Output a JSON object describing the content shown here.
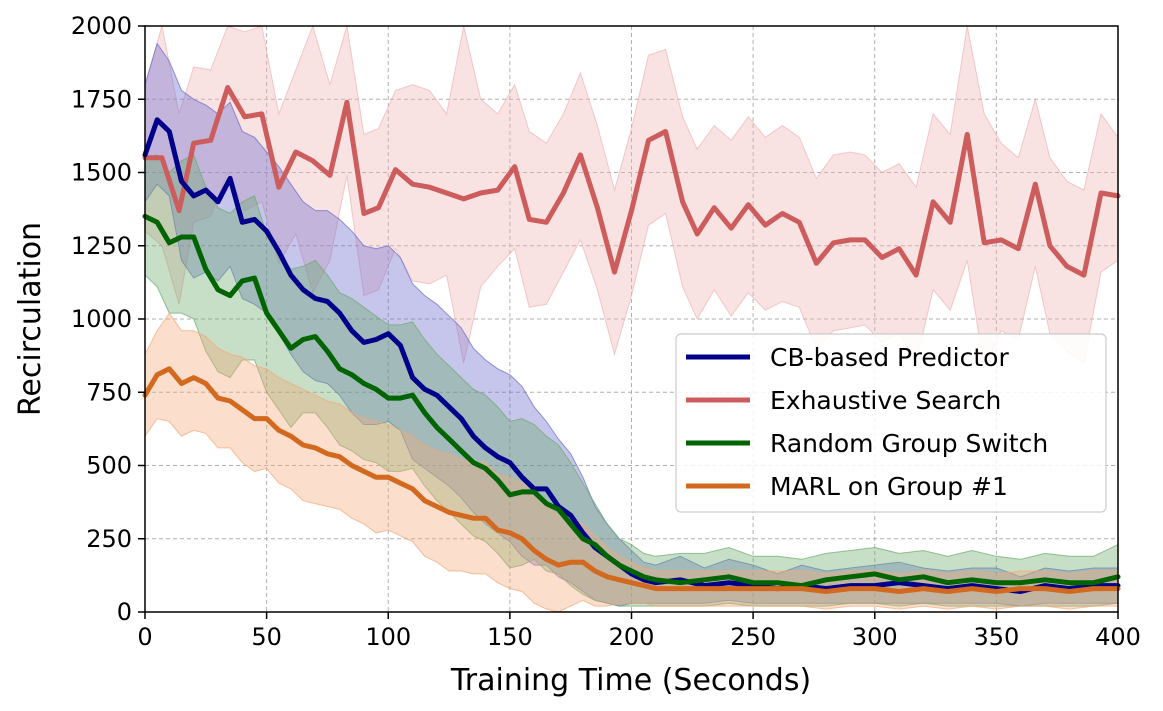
{
  "chart_data": {
    "type": "line",
    "xlabel": "Training Time (Seconds)",
    "ylabel": "Recirculation",
    "xlim": [
      0,
      400
    ],
    "ylim": [
      0,
      2000
    ],
    "xticks": [
      0,
      50,
      100,
      150,
      200,
      250,
      300,
      350,
      400
    ],
    "yticks": [
      0,
      250,
      500,
      750,
      1000,
      1250,
      1500,
      1750,
      2000
    ],
    "grid": true,
    "legend_position": "center-right",
    "series": [
      {
        "name": "CB-based Predictor",
        "color": "#00008b",
        "band_color": "#6a6acd",
        "x": [
          0,
          5,
          10,
          15,
          20,
          25,
          30,
          35,
          40,
          45,
          50,
          55,
          60,
          65,
          70,
          75,
          80,
          85,
          90,
          95,
          100,
          105,
          110,
          115,
          120,
          125,
          130,
          135,
          140,
          145,
          150,
          155,
          160,
          165,
          170,
          175,
          180,
          185,
          190,
          195,
          200,
          205,
          210,
          220,
          230,
          240,
          250,
          260,
          270,
          280,
          290,
          300,
          310,
          320,
          330,
          340,
          350,
          360,
          370,
          380,
          390,
          400
        ],
        "values": [
          1560,
          1680,
          1640,
          1470,
          1420,
          1440,
          1400,
          1480,
          1330,
          1340,
          1300,
          1230,
          1150,
          1100,
          1070,
          1060,
          1020,
          960,
          920,
          930,
          950,
          910,
          800,
          760,
          740,
          700,
          660,
          600,
          560,
          530,
          510,
          460,
          420,
          420,
          360,
          330,
          270,
          220,
          190,
          160,
          130,
          110,
          100,
          110,
          90,
          100,
          90,
          80,
          90,
          80,
          90,
          90,
          100,
          90,
          80,
          90,
          80,
          70,
          90,
          80,
          90,
          90
        ],
        "upper": [
          1800,
          1940,
          1880,
          1780,
          1750,
          1730,
          1700,
          1740,
          1640,
          1620,
          1570,
          1520,
          1460,
          1400,
          1370,
          1370,
          1340,
          1300,
          1250,
          1240,
          1250,
          1210,
          1120,
          1080,
          1050,
          1010,
          970,
          900,
          860,
          830,
          810,
          770,
          700,
          650,
          590,
          540,
          460,
          360,
          300,
          250,
          210,
          170,
          160,
          190,
          150,
          180,
          160,
          130,
          160,
          140,
          150,
          160,
          170,
          150,
          140,
          150,
          150,
          120,
          150,
          140,
          150,
          150
        ],
        "lower": [
          1400,
          1460,
          1420,
          1200,
          1140,
          1160,
          1130,
          1180,
          1070,
          1050,
          1020,
          950,
          880,
          820,
          790,
          780,
          740,
          680,
          640,
          640,
          650,
          620,
          520,
          490,
          460,
          430,
          390,
          340,
          300,
          270,
          240,
          190,
          160,
          160,
          120,
          100,
          70,
          40,
          30,
          20,
          30,
          30,
          30,
          30,
          30,
          40,
          30,
          30,
          30,
          30,
          30,
          30,
          30,
          30,
          30,
          30,
          30,
          20,
          30,
          30,
          30,
          30
        ]
      },
      {
        "name": "Exhaustive Search",
        "color": "#cd5c5c",
        "band_color": "#f0b4b4",
        "x": [
          0,
          7,
          14,
          20,
          27,
          34,
          41,
          48,
          55,
          62,
          69,
          76,
          83,
          90,
          96,
          103,
          110,
          117,
          124,
          131,
          138,
          145,
          152,
          158,
          165,
          172,
          179,
          186,
          193,
          200,
          207,
          214,
          221,
          227,
          234,
          241,
          248,
          255,
          262,
          269,
          276,
          283,
          290,
          296,
          303,
          310,
          317,
          324,
          331,
          338,
          345,
          352,
          359,
          366,
          372,
          379,
          386,
          393,
          400
        ],
        "values": [
          1550,
          1550,
          1370,
          1600,
          1610,
          1790,
          1690,
          1700,
          1450,
          1570,
          1540,
          1490,
          1740,
          1360,
          1380,
          1510,
          1460,
          1450,
          1430,
          1410,
          1430,
          1440,
          1520,
          1340,
          1330,
          1430,
          1560,
          1380,
          1160,
          1370,
          1610,
          1640,
          1400,
          1290,
          1380,
          1310,
          1390,
          1320,
          1360,
          1330,
          1190,
          1260,
          1270,
          1270,
          1210,
          1240,
          1150,
          1400,
          1330,
          1630,
          1260,
          1270,
          1240,
          1460,
          1250,
          1180,
          1150,
          1430,
          1420
        ],
        "upper": [
          1800,
          2000,
          1700,
          1860,
          1850,
          2000,
          1980,
          2000,
          1700,
          1850,
          2000,
          1800,
          2000,
          1630,
          1650,
          1780,
          1800,
          1780,
          1700,
          2000,
          1750,
          1700,
          1800,
          1640,
          1600,
          1700,
          1840,
          1660,
          1440,
          1650,
          1900,
          1920,
          1690,
          1580,
          1660,
          1610,
          1690,
          1620,
          1660,
          1620,
          1480,
          1560,
          1570,
          1560,
          1500,
          1530,
          1450,
          1700,
          1630,
          2000,
          1700,
          1600,
          1550,
          1750,
          1550,
          1470,
          1440,
          1700,
          1620
        ],
        "lower": [
          1300,
          1250,
          1050,
          1330,
          1350,
          1500,
          1370,
          1400,
          1190,
          1290,
          1090,
          1200,
          1490,
          1080,
          1100,
          1240,
          1130,
          1120,
          1150,
          850,
          1110,
          1180,
          1240,
          1040,
          1050,
          1160,
          1270,
          1100,
          880,
          1080,
          1320,
          1360,
          1110,
          1000,
          1100,
          1010,
          1090,
          1030,
          1060,
          1040,
          900,
          960,
          970,
          980,
          920,
          950,
          850,
          1100,
          1030,
          1200,
          830,
          960,
          930,
          1180,
          950,
          890,
          850,
          1160,
          1200
        ]
      },
      {
        "name": "Random Group Switch",
        "color": "#006400",
        "band_color": "#6aaa6a",
        "x": [
          0,
          5,
          10,
          15,
          20,
          25,
          30,
          35,
          40,
          45,
          50,
          55,
          60,
          65,
          70,
          75,
          80,
          85,
          90,
          95,
          100,
          105,
          110,
          115,
          120,
          125,
          130,
          135,
          140,
          145,
          150,
          155,
          160,
          165,
          170,
          175,
          180,
          185,
          190,
          195,
          200,
          205,
          210,
          220,
          230,
          240,
          250,
          260,
          270,
          280,
          290,
          300,
          310,
          320,
          330,
          340,
          350,
          360,
          370,
          380,
          390,
          400
        ],
        "values": [
          1350,
          1330,
          1260,
          1280,
          1280,
          1170,
          1100,
          1080,
          1130,
          1140,
          1020,
          960,
          900,
          930,
          940,
          890,
          830,
          810,
          780,
          760,
          730,
          730,
          740,
          680,
          630,
          590,
          550,
          510,
          490,
          450,
          400,
          410,
          410,
          370,
          350,
          300,
          250,
          230,
          190,
          160,
          140,
          120,
          110,
          100,
          110,
          120,
          100,
          100,
          90,
          110,
          120,
          130,
          110,
          120,
          100,
          110,
          100,
          100,
          110,
          100,
          100,
          120
        ],
        "upper": [
          1550,
          1560,
          1500,
          1540,
          1560,
          1450,
          1380,
          1360,
          1400,
          1420,
          1290,
          1230,
          1170,
          1180,
          1200,
          1150,
          1090,
          1070,
          1040,
          1010,
          980,
          980,
          990,
          930,
          880,
          840,
          800,
          760,
          740,
          700,
          650,
          660,
          640,
          600,
          570,
          510,
          440,
          370,
          300,
          250,
          230,
          200,
          190,
          200,
          200,
          220,
          190,
          190,
          180,
          200,
          210,
          220,
          200,
          210,
          190,
          210,
          190,
          180,
          200,
          190,
          190,
          230
        ],
        "lower": [
          1150,
          1110,
          1020,
          1020,
          1000,
          890,
          820,
          800,
          860,
          860,
          750,
          690,
          630,
          680,
          680,
          630,
          570,
          550,
          520,
          510,
          480,
          480,
          490,
          430,
          380,
          340,
          300,
          260,
          240,
          200,
          150,
          160,
          180,
          140,
          130,
          90,
          60,
          40,
          30,
          20,
          20,
          20,
          20,
          20,
          20,
          30,
          20,
          20,
          20,
          20,
          30,
          30,
          20,
          30,
          20,
          20,
          20,
          20,
          20,
          20,
          20,
          30
        ]
      },
      {
        "name": "MARL on Group #1",
        "color": "#d2691e",
        "band_color": "#f4a878",
        "x": [
          0,
          5,
          10,
          15,
          20,
          25,
          30,
          35,
          40,
          45,
          50,
          55,
          60,
          65,
          70,
          75,
          80,
          85,
          90,
          95,
          100,
          105,
          110,
          115,
          120,
          125,
          130,
          135,
          140,
          145,
          150,
          155,
          160,
          165,
          170,
          175,
          180,
          185,
          190,
          195,
          200,
          205,
          210,
          220,
          230,
          240,
          250,
          260,
          270,
          280,
          290,
          300,
          310,
          320,
          330,
          340,
          350,
          360,
          370,
          380,
          390,
          400
        ],
        "values": [
          740,
          810,
          830,
          780,
          800,
          780,
          730,
          720,
          690,
          660,
          660,
          620,
          600,
          570,
          560,
          540,
          530,
          500,
          480,
          460,
          460,
          440,
          420,
          380,
          360,
          340,
          330,
          320,
          320,
          280,
          270,
          250,
          210,
          180,
          160,
          170,
          170,
          140,
          120,
          110,
          100,
          90,
          80,
          80,
          80,
          80,
          80,
          80,
          80,
          70,
          80,
          80,
          70,
          80,
          70,
          80,
          70,
          80,
          80,
          70,
          80,
          80
        ],
        "upper": [
          880,
          960,
          1020,
          960,
          960,
          940,
          900,
          880,
          870,
          840,
          830,
          800,
          780,
          760,
          740,
          720,
          710,
          680,
          660,
          650,
          640,
          620,
          600,
          570,
          550,
          540,
          520,
          510,
          510,
          470,
          460,
          440,
          400,
          360,
          330,
          320,
          300,
          260,
          220,
          190,
          170,
          150,
          140,
          140,
          140,
          140,
          140,
          140,
          140,
          130,
          140,
          140,
          130,
          140,
          130,
          140,
          130,
          140,
          140,
          130,
          140,
          140
        ],
        "lower": [
          600,
          660,
          650,
          600,
          620,
          610,
          560,
          560,
          510,
          480,
          490,
          440,
          420,
          380,
          370,
          360,
          350,
          320,
          300,
          270,
          280,
          260,
          240,
          190,
          170,
          140,
          140,
          130,
          130,
          100,
          80,
          70,
          30,
          10,
          0,
          20,
          40,
          20,
          20,
          30,
          30,
          30,
          20,
          20,
          20,
          20,
          20,
          20,
          20,
          10,
          20,
          20,
          10,
          20,
          10,
          20,
          10,
          20,
          20,
          10,
          20,
          20
        ]
      }
    ]
  }
}
